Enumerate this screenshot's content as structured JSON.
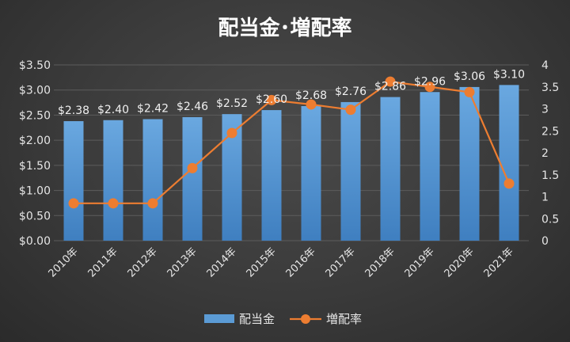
{
  "chart_data": {
    "type": "bar+line",
    "title": "配当金･増配率",
    "categories": [
      "2010年",
      "2011年",
      "2012年",
      "2013年",
      "2014年",
      "2015年",
      "2016年",
      "2017年",
      "2018年",
      "2019年",
      "2020年",
      "2021年"
    ],
    "series": [
      {
        "name": "配当金",
        "type": "bar",
        "axis": "left",
        "values": [
          2.38,
          2.4,
          2.42,
          2.46,
          2.52,
          2.6,
          2.68,
          2.76,
          2.86,
          2.96,
          3.06,
          3.1
        ],
        "data_labels": [
          "$2.38",
          "$2.40",
          "$2.42",
          "$2.46",
          "$2.52",
          "$2.60",
          "$2.68",
          "$2.76",
          "$2.86",
          "$2.96",
          "$3.06",
          "$3.10"
        ],
        "color": "#5b9bd5"
      },
      {
        "name": "増配率",
        "type": "line",
        "axis": "right",
        "values": [
          0.85,
          0.85,
          0.85,
          1.65,
          2.45,
          3.2,
          3.1,
          2.98,
          3.62,
          3.5,
          3.38,
          1.3
        ],
        "color": "#ed7d31"
      }
    ],
    "left_axis": {
      "ylim": [
        0,
        3.5
      ],
      "ticks": [
        0,
        0.5,
        1,
        1.5,
        2,
        2.5,
        3,
        3.5
      ],
      "tick_labels": [
        "$0.00",
        "$0.50",
        "$1.00",
        "$1.50",
        "$2.00",
        "$2.50",
        "$3.00",
        "$3.50"
      ]
    },
    "right_axis": {
      "ylim": [
        0,
        4
      ],
      "ticks": [
        0,
        0.5,
        1,
        1.5,
        2,
        2.5,
        3,
        3.5,
        4
      ],
      "tick_labels": [
        "0",
        "0.5",
        "1",
        "1.5",
        "2",
        "2.5",
        "3",
        "3.5",
        "4"
      ]
    },
    "grid": true,
    "legend_position": "bottom"
  }
}
